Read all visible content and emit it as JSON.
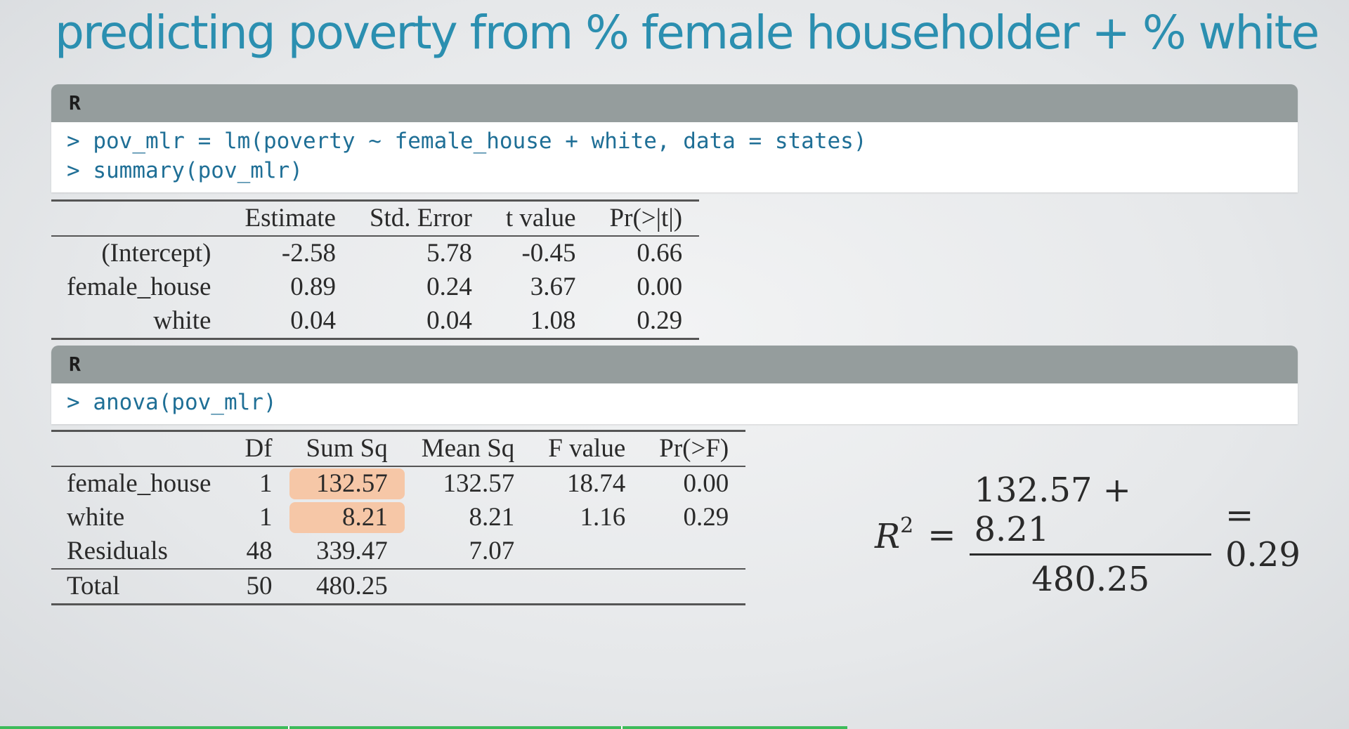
{
  "slide": {
    "title": "predicting poverty from % female householder + % white"
  },
  "code_block_1": {
    "header": "R",
    "lines": [
      "> pov_mlr = lm(poverty ~ female_house + white, data = states)",
      "> summary(pov_mlr)"
    ]
  },
  "coef_table": {
    "columns": [
      "",
      "Estimate",
      "Std. Error",
      "t value",
      "Pr(>|t|)"
    ],
    "rows": [
      [
        "(Intercept)",
        "-2.58",
        "5.78",
        "-0.45",
        "0.66"
      ],
      [
        "female_house",
        "0.89",
        "0.24",
        "3.67",
        "0.00"
      ],
      [
        "white",
        "0.04",
        "0.04",
        "1.08",
        "0.29"
      ]
    ]
  },
  "code_block_2": {
    "header": "R",
    "lines": [
      "> anova(pov_mlr)"
    ]
  },
  "anova_table": {
    "columns": [
      "",
      "Df",
      "Sum Sq",
      "Mean Sq",
      "F value",
      "Pr(>F)"
    ],
    "rows": [
      [
        "female_house",
        "1",
        "132.57",
        "132.57",
        "18.74",
        "0.00"
      ],
      [
        "white",
        "1",
        "8.21",
        "8.21",
        "1.16",
        "0.29"
      ],
      [
        "Residuals",
        "48",
        "339.47",
        "7.07",
        "",
        ""
      ]
    ],
    "total": [
      "Total",
      "50",
      "480.25",
      "",
      "",
      ""
    ],
    "highlight_color": "#f6c7a7"
  },
  "formula": {
    "lhs_var": "R",
    "lhs_sup": "2",
    "equals": "=",
    "numerator": "132.57 + 8.21",
    "denominator": "480.25",
    "result": "= 0.29"
  },
  "progress": {
    "fraction": 0.628,
    "color": "#3dbb5a"
  }
}
